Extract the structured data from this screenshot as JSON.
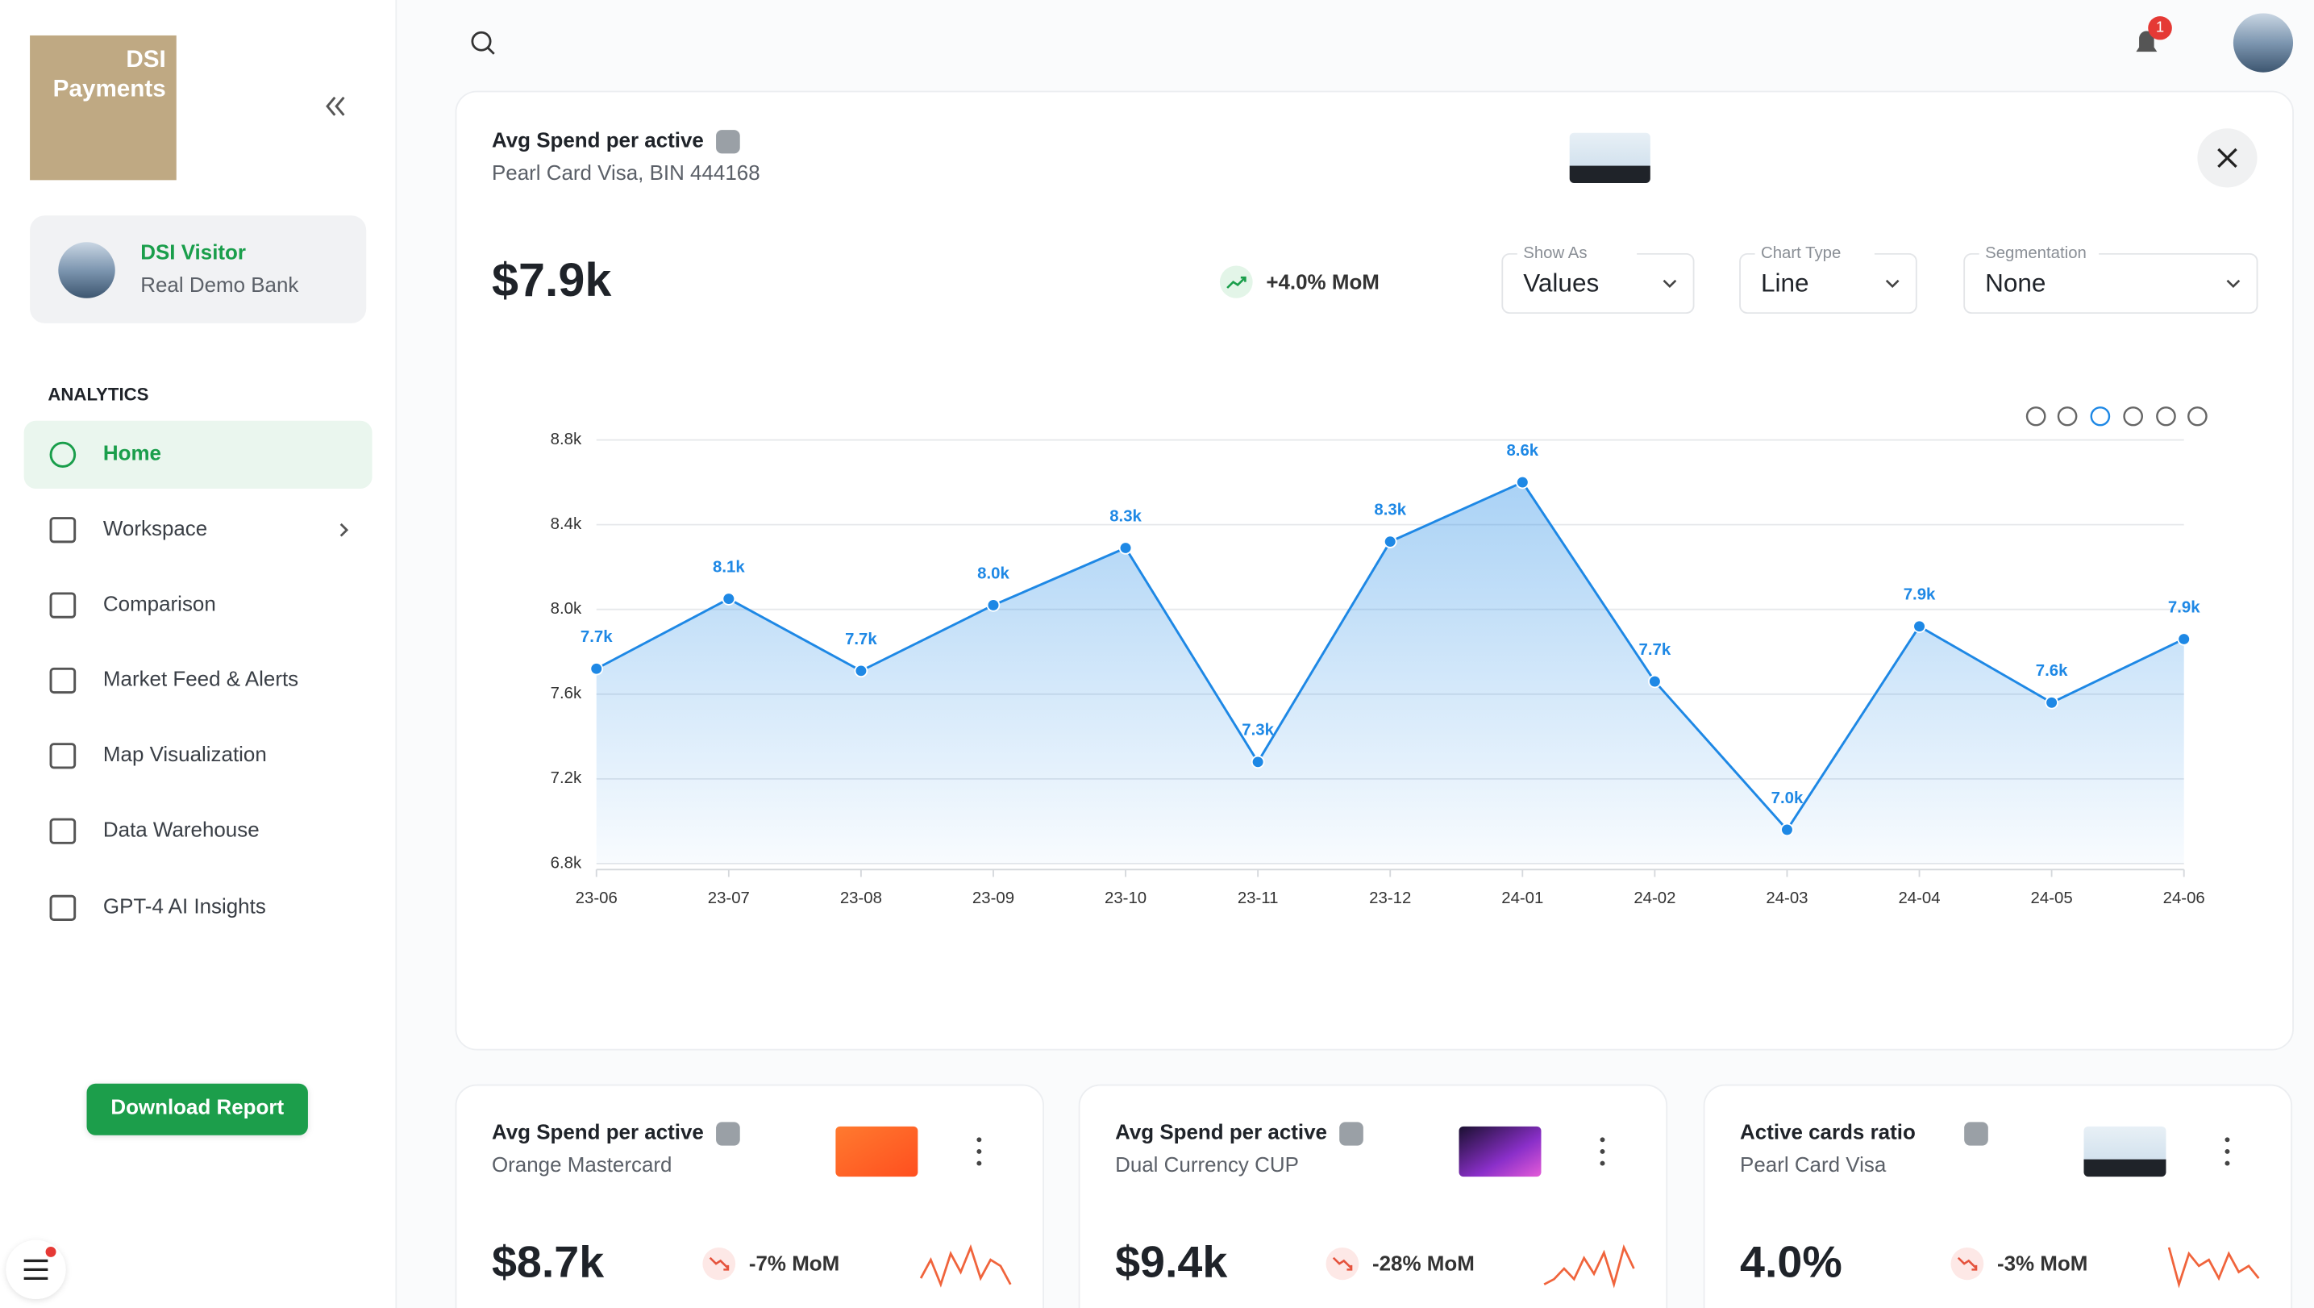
{
  "sidebar": {
    "brand": [
      "DSI",
      "Payments"
    ],
    "user": {
      "name": "DSI Visitor",
      "bank": "Real Demo Bank"
    },
    "section": "ANALYTICS",
    "nav": [
      "Home",
      "Workspace",
      "Comparison",
      "Market Feed & Alerts",
      "Map Visualization",
      "Data Warehouse",
      "GPT-4 AI Insights"
    ],
    "button": "Download Report"
  },
  "notifications": {
    "count": "1"
  },
  "main": {
    "title": "Avg Spend per active",
    "subtitle": "Pearl Card Visa,  BIN 444168",
    "value": "$7.9k",
    "change": "+4.0% MoM",
    "controls": [
      {
        "label": "Show As",
        "value": "Values"
      },
      {
        "label": "Chart Type",
        "value": "Line"
      },
      {
        "label": "Segmentation",
        "value": "None"
      }
    ]
  },
  "chart_data": {
    "type": "line",
    "categories": [
      "23-06",
      "23-07",
      "23-08",
      "23-09",
      "23-10",
      "23-11",
      "23-12",
      "24-01",
      "24-02",
      "24-03",
      "24-04",
      "24-05",
      "24-06"
    ],
    "values": [
      7720,
      8050,
      7710,
      8020,
      8290,
      7280,
      8320,
      8600,
      7660,
      6960,
      7920,
      7560,
      7860
    ],
    "value_labels": [
      "7.7k",
      "8.1k",
      "7.7k",
      "8.0k",
      "8.3k",
      "7.3k",
      "8.3k",
      "8.6k",
      "7.7k",
      "7.0k",
      "7.9k",
      "7.6k",
      "7.9k"
    ],
    "color": "#1e88e5",
    "ylim": [
      6800,
      8800
    ],
    "yticks": [
      {
        "value": 6800,
        "label": "6.8k"
      },
      {
        "value": 7200,
        "label": "7.2k"
      },
      {
        "value": 7600,
        "label": "7.6k"
      },
      {
        "value": 8000,
        "label": "8.0k"
      },
      {
        "value": 8400,
        "label": "8.4k"
      },
      {
        "value": 8800,
        "label": "8.8k"
      }
    ],
    "grid": true
  },
  "cards": [
    {
      "title": "Avg Spend per active",
      "subtitle": "Orange Mastercard",
      "value": "$8.7k",
      "change": "-7% MoM",
      "sparkline": [
        3,
        6,
        2,
        7,
        4,
        8,
        3,
        6,
        5,
        2
      ]
    },
    {
      "title": "Avg Spend per active",
      "subtitle": "Dual Currency CUP",
      "value": "$9.4k",
      "change": "-28% MoM",
      "sparkline": [
        2,
        3,
        5,
        3,
        7,
        4,
        8,
        2,
        9,
        5
      ]
    },
    {
      "title": "Active cards ratio",
      "subtitle": "Pearl Card Visa",
      "value": "4.0%",
      "change": "-3% MoM",
      "sparkline": [
        8,
        2,
        7,
        5,
        6,
        3,
        7,
        4,
        5,
        3
      ]
    }
  ]
}
